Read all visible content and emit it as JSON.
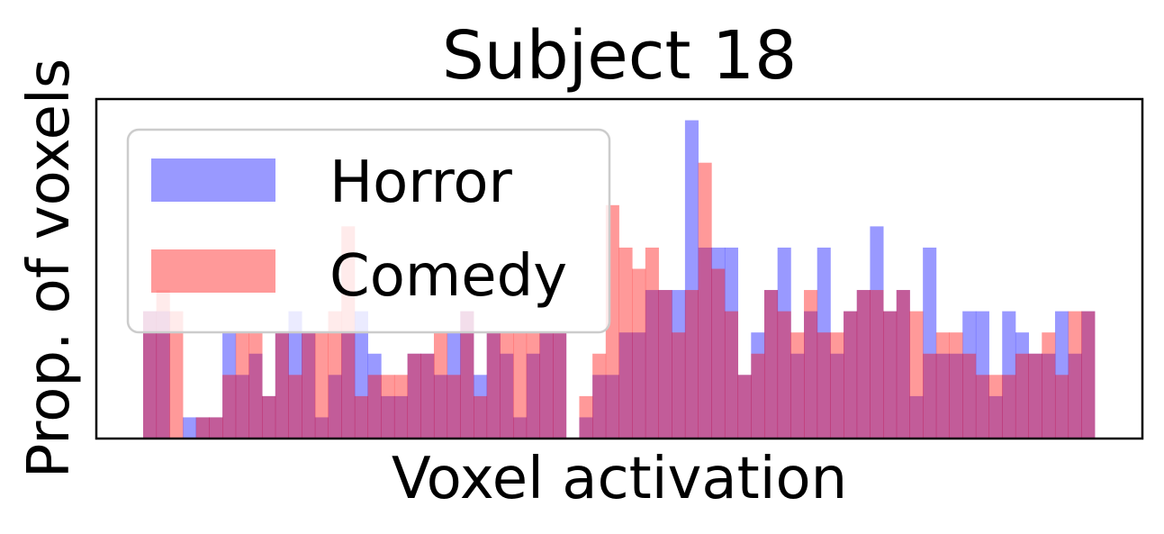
{
  "chart_data": {
    "type": "bar",
    "title": "Subject 18",
    "xlabel": "Voxel activation",
    "ylabel": "Prop. of voxels",
    "ylim": [
      0,
      16
    ],
    "legend_position": "upper-left",
    "grid": false,
    "series": [
      {
        "name": "Horror",
        "color": "#0000ff",
        "values": [
          6,
          6,
          0,
          1,
          1,
          1,
          5,
          3,
          4,
          2,
          5,
          6,
          5,
          1,
          3,
          5,
          6,
          4,
          2,
          2,
          4,
          4,
          3,
          5,
          6,
          3,
          5,
          4,
          1,
          4,
          5,
          5,
          0,
          1,
          3,
          3,
          5,
          5,
          7,
          7,
          7,
          15,
          9,
          9,
          9,
          3,
          5,
          7,
          9,
          4,
          6,
          9,
          4,
          6,
          7,
          10,
          6,
          7,
          2,
          9,
          4,
          4,
          6,
          6,
          2,
          6,
          5,
          4,
          4,
          6,
          4,
          6
        ],
        "alpha": 0.4
      },
      {
        "name": "Comedy",
        "color": "#ff0000",
        "values": [
          6,
          7,
          6,
          0,
          1,
          1,
          3,
          5,
          5,
          2,
          5,
          3,
          5,
          5,
          6,
          10,
          2,
          3,
          3,
          3,
          4,
          4,
          5,
          3,
          6,
          2,
          5,
          5,
          5,
          5,
          5,
          5,
          0,
          2,
          4,
          11,
          9,
          8,
          9,
          7,
          5,
          7,
          13,
          8,
          6,
          3,
          4,
          7,
          6,
          5,
          7,
          5,
          5,
          6,
          7,
          7,
          6,
          7,
          6,
          4,
          5,
          5,
          4,
          3,
          3,
          3,
          4,
          4,
          5,
          3,
          6,
          6
        ],
        "alpha": 0.4
      }
    ]
  }
}
